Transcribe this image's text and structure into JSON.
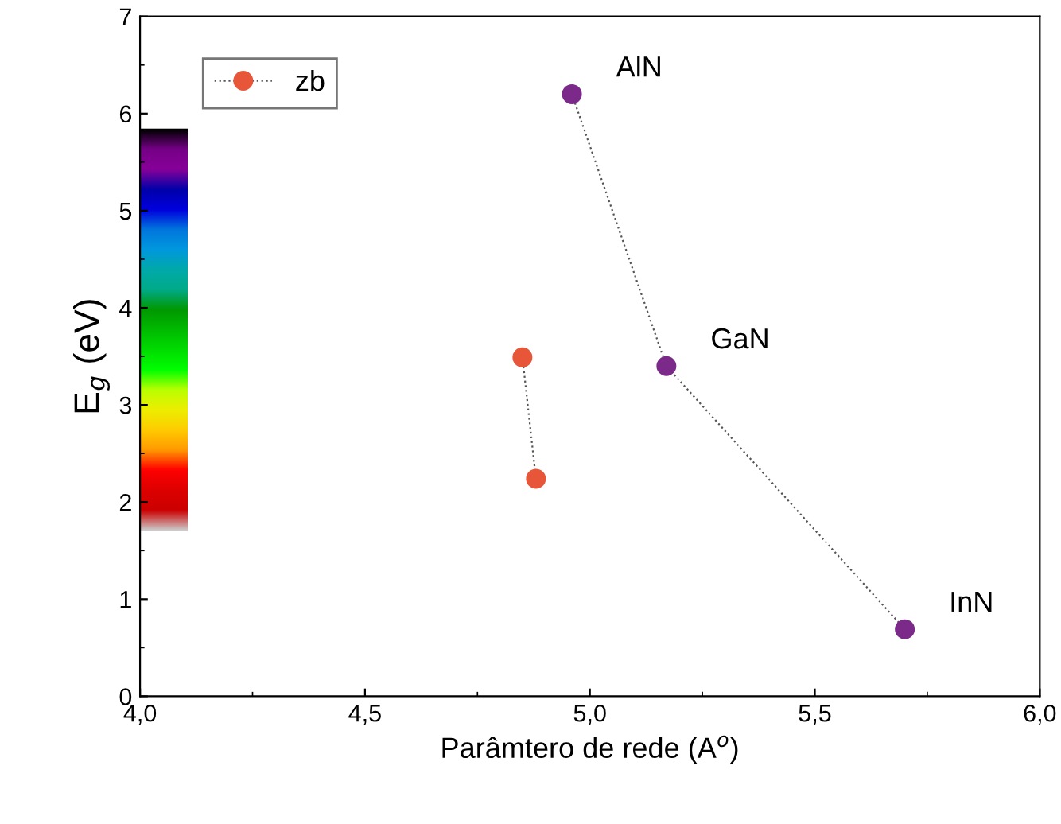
{
  "chart_data": {
    "type": "line",
    "xlabel": "Parâmtero de rede (A$^{o}$)",
    "ylabel": "E$_{g}$ (eV)",
    "series": [
      {
        "color": "#7b2a8a",
        "x": [
          4.96,
          5.17,
          5.7
        ],
        "values": [
          6.2,
          3.4,
          0.69
        ],
        "marker": "circle"
      },
      {
        "name": "zb",
        "color": "#e8563a",
        "x": [
          4.85,
          4.88
        ],
        "values": [
          3.49,
          2.24
        ],
        "marker": "circle"
      }
    ],
    "line_style": "dotted",
    "legend": "top left",
    "grid": false,
    "xlim": [
      4.0,
      6.0
    ],
    "xticks": [
      {
        "value": 4.0,
        "label": "4,0"
      },
      {
        "value": 4.5,
        "label": "4,5"
      },
      {
        "value": 5.0,
        "label": "5,0"
      },
      {
        "value": 5.5,
        "label": "5,5"
      },
      {
        "value": 6.0,
        "label": "6,0"
      }
    ],
    "ylim": [
      0,
      7
    ],
    "yticks": [
      0,
      1,
      2,
      3,
      4,
      5,
      6,
      7
    ],
    "annotations": [
      {
        "text": "AlN",
        "x": 4.96,
        "y": 6.2
      },
      {
        "text": "GaN",
        "x": 5.17,
        "y": 3.4
      },
      {
        "text": "InN",
        "x": 5.7,
        "y": 0.69
      }
    ]
  }
}
